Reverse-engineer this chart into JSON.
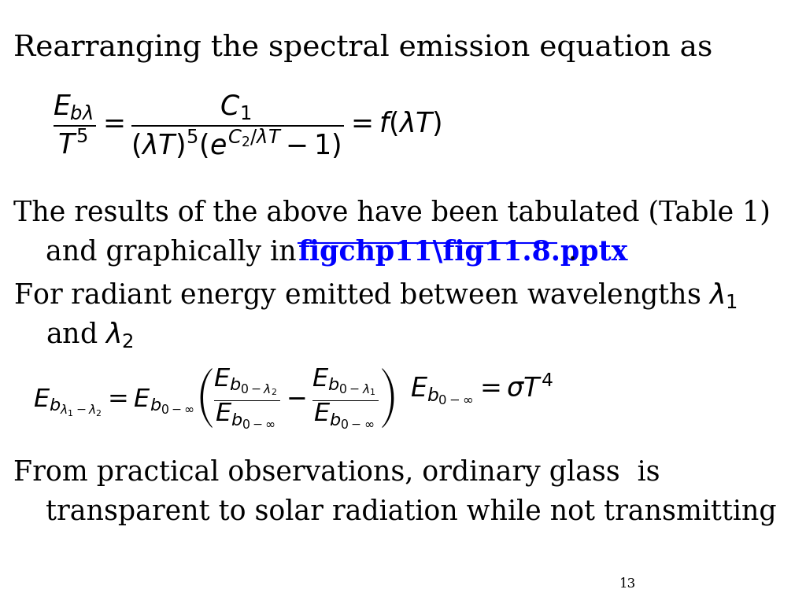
{
  "background_color": "#ffffff",
  "page_number": "13",
  "title_text": "Rearranging the spectral emission equation as",
  "link_text": "figchp11\\fig11.8.pptx",
  "link_color": "#0000FF",
  "text_color": "#000000",
  "line1": "The results of the above have been tabulated (Table 1)",
  "line2a": "and graphically in ",
  "line2b": " .",
  "line3": "For radiant energy emitted between wavelengths $\\lambda_1$",
  "line3b": "and $\\lambda_2$",
  "line4": "From practical observations, ordinary glass  is",
  "line4b": "transparent to solar radiation while not transmitting",
  "fs_title": 27,
  "fs_body": 25,
  "fs_eq": 23,
  "fs_page": 12
}
